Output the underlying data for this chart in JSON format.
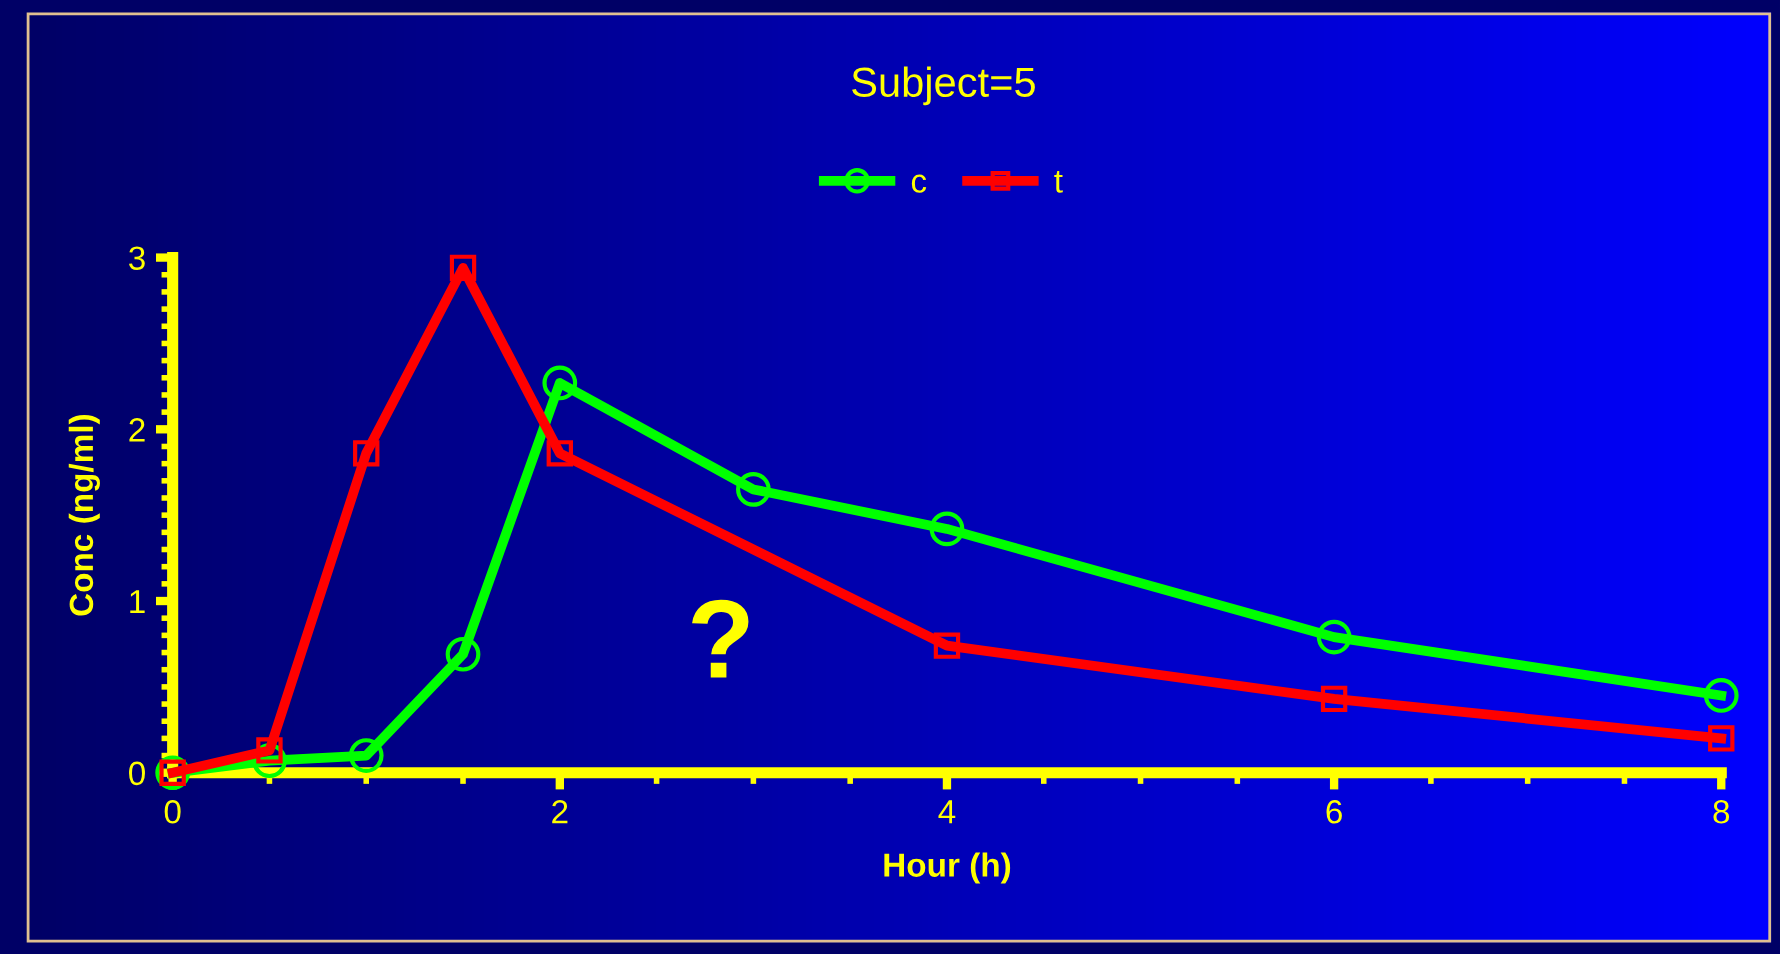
{
  "chart_data": {
    "type": "line",
    "title": "Subject=5",
    "xlabel": "Hour (h)",
    "ylabel": "Conc (ng/ml)",
    "xlim": [
      0,
      8
    ],
    "xticks": [
      0,
      2,
      4,
      6,
      8
    ],
    "ylim": [
      0,
      3
    ],
    "yticks": [
      0,
      1,
      2,
      3
    ],
    "grid": false,
    "legend": "top",
    "line_style": "solid",
    "annotations": [
      "?"
    ],
    "series": [
      {
        "name": "c",
        "color": "#00ff00",
        "marker": "circle",
        "x": [
          0,
          0.5,
          1,
          1.5,
          2,
          3,
          4,
          6,
          8
        ],
        "values": [
          0,
          0.07,
          0.1,
          0.69,
          2.27,
          1.65,
          1.42,
          0.79,
          0.45
        ]
      },
      {
        "name": "t",
        "color": "#ff0000",
        "marker": "square",
        "x": [
          0,
          0.5,
          1,
          1.5,
          2,
          4,
          6,
          8
        ],
        "values": [
          0,
          0.13,
          1.86,
          2.94,
          1.86,
          0.74,
          0.43,
          0.2
        ]
      }
    ]
  }
}
